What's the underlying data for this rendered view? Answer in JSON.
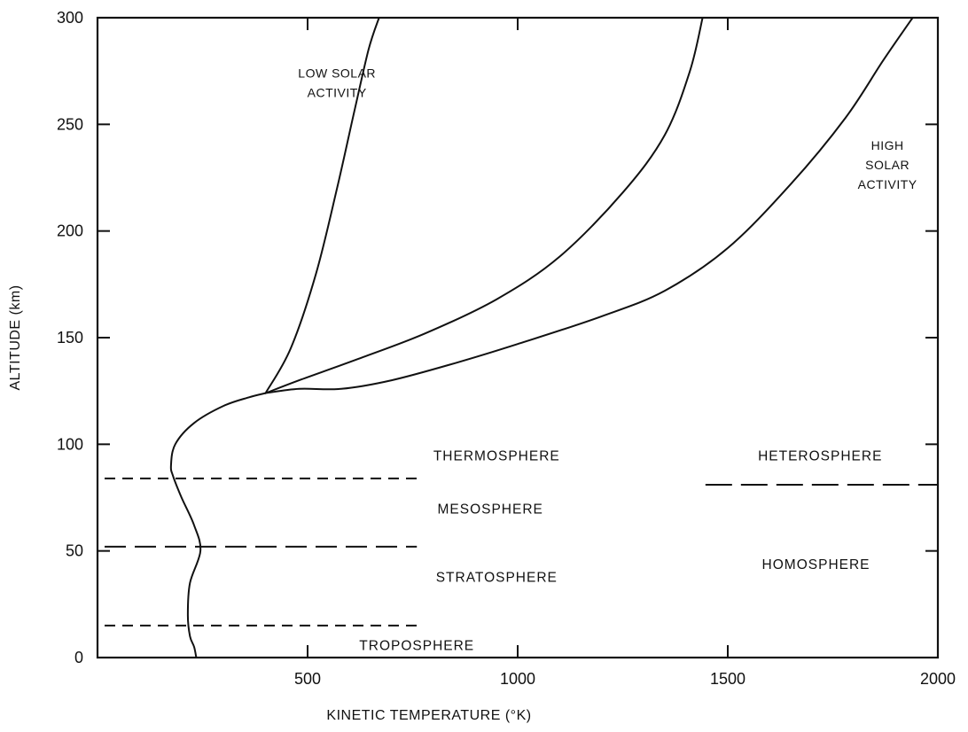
{
  "chart_data": {
    "type": "line",
    "title": "",
    "xlabel": "KINETIC TEMPERATURE (°K)",
    "ylabel": "ALTITUDE (km)",
    "xlim": [
      0,
      2000
    ],
    "ylim": [
      0,
      300
    ],
    "x_ticks": [
      {
        "value": 500,
        "label": "500"
      },
      {
        "value": 1000,
        "label": "1000"
      },
      {
        "value": 1500,
        "label": "1500"
      },
      {
        "value": 2000,
        "label": "2000"
      }
    ],
    "y_ticks": [
      {
        "value": 0,
        "label": "0"
      },
      {
        "value": 50,
        "label": "50"
      },
      {
        "value": 100,
        "label": "100"
      },
      {
        "value": 150,
        "label": "150"
      },
      {
        "value": 200,
        "label": "200"
      },
      {
        "value": 250,
        "label": "250"
      },
      {
        "value": 300,
        "label": "300"
      }
    ],
    "grid": false,
    "series": [
      {
        "name": "",
        "points": [
          [
            235,
            0
          ],
          [
            230,
            5
          ],
          [
            220,
            10
          ],
          [
            215,
            20
          ],
          [
            220,
            35
          ],
          [
            245,
            50
          ],
          [
            230,
            62
          ],
          [
            200,
            75
          ],
          [
            180,
            85
          ],
          [
            175,
            90
          ],
          [
            185,
            100
          ],
          [
            230,
            110
          ],
          [
            300,
            118
          ],
          [
            360,
            122
          ],
          [
            400,
            124
          ]
        ]
      },
      {
        "name": "LOW SOLAR ACTIVITY",
        "points": [
          [
            400,
            124
          ],
          [
            460,
            145
          ],
          [
            520,
            180
          ],
          [
            570,
            220
          ],
          [
            610,
            255
          ],
          [
            645,
            285
          ],
          [
            670,
            300
          ]
        ]
      },
      {
        "name": "",
        "points": [
          [
            400,
            124
          ],
          [
            480,
            130
          ],
          [
            620,
            140
          ],
          [
            780,
            152
          ],
          [
            950,
            168
          ],
          [
            1100,
            188
          ],
          [
            1250,
            218
          ],
          [
            1350,
            245
          ],
          [
            1410,
            275
          ],
          [
            1440,
            300
          ]
        ]
      },
      {
        "name": "HIGH SOLAR ACTIVITY",
        "points": [
          [
            400,
            124
          ],
          [
            480,
            126
          ],
          [
            580,
            126
          ],
          [
            700,
            130
          ],
          [
            850,
            138
          ],
          [
            1000,
            147
          ],
          [
            1200,
            160
          ],
          [
            1350,
            172
          ],
          [
            1500,
            192
          ],
          [
            1650,
            222
          ],
          [
            1780,
            253
          ],
          [
            1870,
            280
          ],
          [
            1940,
            300
          ]
        ]
      }
    ],
    "boundaries": [
      {
        "name": "mesopause",
        "y": 84,
        "x_range": [
          0,
          760
        ]
      },
      {
        "name": "stratopause",
        "y": 52,
        "x_range": [
          0,
          760
        ]
      },
      {
        "name": "tropopause",
        "y": 15,
        "x_range": [
          0,
          760
        ]
      },
      {
        "name": "turbopause",
        "y": 81,
        "x_range": [
          1430,
          2000
        ]
      }
    ],
    "annotations": [
      {
        "text": "THERMOSPHERE",
        "x": 950,
        "y": 95
      },
      {
        "text": "MESOSPHERE",
        "x": 935,
        "y": 70
      },
      {
        "text": "STRATOSPHERE",
        "x": 950,
        "y": 38
      },
      {
        "text": "TROPOSPHERE",
        "x": 760,
        "y": 6
      },
      {
        "text": "HETEROSPHERE",
        "x": 1720,
        "y": 95
      },
      {
        "text": "HOMOSPHERE",
        "x": 1710,
        "y": 44
      }
    ],
    "curve_labels": [
      {
        "lines": [
          "LOW SOLAR",
          "ACTIVITY"
        ],
        "x": 570,
        "y": 272
      },
      {
        "lines": [
          "HIGH",
          "SOLAR",
          "ACTIVITY"
        ],
        "x": 1880,
        "y": 238
      }
    ]
  }
}
